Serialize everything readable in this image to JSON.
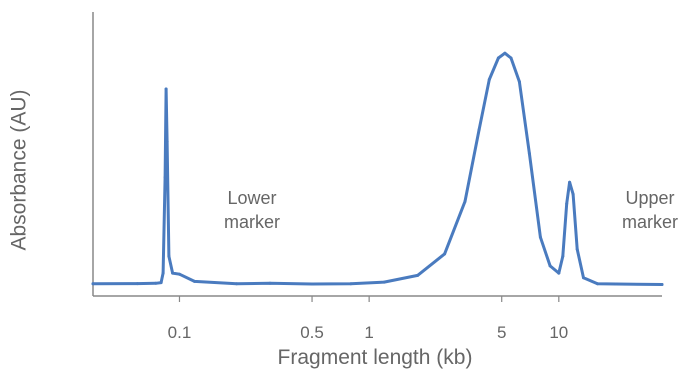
{
  "chart_data": {
    "type": "line",
    "title": "",
    "xlabel": "Fragment length (kb)",
    "ylabel": "Absorbance (AU)",
    "x_scale": "log",
    "xlim": [
      0.035,
      35
    ],
    "ylim": [
      0,
      1.0
    ],
    "x_ticks": [
      {
        "value": 0.1,
        "label": "0.1"
      },
      {
        "value": 0.5,
        "label": "0.5"
      },
      {
        "value": 1,
        "label": "1"
      },
      {
        "value": 5,
        "label": "5"
      },
      {
        "value": 10,
        "label": "10"
      }
    ],
    "series": [
      {
        "color": "#4a7bbf",
        "points": [
          [
            0.035,
            0.005
          ],
          [
            0.06,
            0.006
          ],
          [
            0.075,
            0.007
          ],
          [
            0.08,
            0.01
          ],
          [
            0.082,
            0.05
          ],
          [
            0.084,
            0.45
          ],
          [
            0.085,
            0.82
          ],
          [
            0.086,
            0.6
          ],
          [
            0.088,
            0.12
          ],
          [
            0.092,
            0.05
          ],
          [
            0.1,
            0.045
          ],
          [
            0.12,
            0.015
          ],
          [
            0.2,
            0.005
          ],
          [
            0.3,
            0.007
          ],
          [
            0.5,
            0.004
          ],
          [
            0.8,
            0.005
          ],
          [
            1.2,
            0.012
          ],
          [
            1.8,
            0.04
          ],
          [
            2.5,
            0.13
          ],
          [
            3.2,
            0.35
          ],
          [
            3.8,
            0.65
          ],
          [
            4.3,
            0.86
          ],
          [
            4.8,
            0.95
          ],
          [
            5.2,
            0.97
          ],
          [
            5.6,
            0.95
          ],
          [
            6.2,
            0.85
          ],
          [
            7,
            0.55
          ],
          [
            8,
            0.2
          ],
          [
            9,
            0.08
          ],
          [
            10,
            0.05
          ],
          [
            10.5,
            0.12
          ],
          [
            11,
            0.34
          ],
          [
            11.4,
            0.43
          ],
          [
            11.9,
            0.38
          ],
          [
            12.5,
            0.15
          ],
          [
            13.5,
            0.03
          ],
          [
            16,
            0.005
          ],
          [
            20,
            0.004
          ],
          [
            35,
            0.002
          ]
        ]
      }
    ],
    "annotations": [
      {
        "text_line1": "Lower",
        "text_line2": "marker",
        "x": 0.085
      },
      {
        "text_line1": "Upper",
        "text_line2": "marker",
        "x": 11.4
      }
    ],
    "grid": false,
    "legend": "none"
  }
}
